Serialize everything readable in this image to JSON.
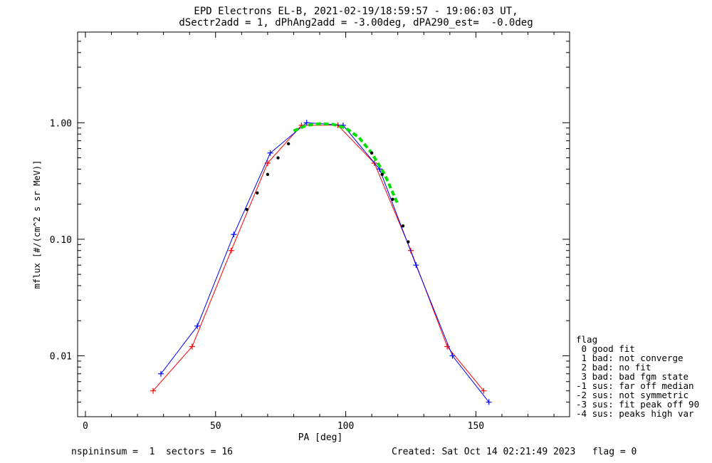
{
  "title_line1": "EPD Electrons EL-B, 2021-02-19/18:59:57 - 19:06:03 UT,",
  "title_line2": "dSectr2add = 1, dPhAng2add = -3.00deg, dPA290_est=  -0.0deg",
  "footer_left": "nspininsum =  1  sectors = 16",
  "footer_right": "Created: Sat Oct 14 02:21:49 2023   flag = 0",
  "legend": {
    "title": "flag",
    "items": [
      " 0 good fit",
      " 1 bad: not converge",
      " 2 bad: no fit",
      " 3 bad: bad fgm state",
      "-1 sus: far off median",
      "-2 sus: not symmetric",
      "-3 sus: fit peak off 90",
      "-4 sus: peaks high var"
    ]
  },
  "colors": {
    "red": "#ff0000",
    "blue": "#0000ff",
    "green": "#00dd00",
    "black": "#000000"
  },
  "chart_data": {
    "type": "line",
    "xlabel": "PA [deg]",
    "ylabel": "mflux [#/(cm^2 s sr MeV)]",
    "xlim": [
      -3,
      186
    ],
    "ylim": [
      0.003,
      6.0
    ],
    "yscale": "log",
    "xticks": [
      0,
      50,
      100,
      150
    ],
    "xtick_labels": [
      "0",
      "50",
      "100",
      "150"
    ],
    "yticks": [
      0.01,
      0.1,
      1.0
    ],
    "ytick_labels": [
      "0.01",
      "0.10",
      "1.00"
    ],
    "series": [
      {
        "color": "red",
        "style": "line+plus",
        "x": [
          26,
          41,
          56,
          70,
          83,
          97,
          111,
          125,
          139,
          153
        ],
        "y": [
          0.005,
          0.012,
          0.08,
          0.45,
          0.95,
          0.95,
          0.45,
          0.08,
          0.012,
          0.005
        ]
      },
      {
        "color": "blue",
        "style": "line+plus",
        "x": [
          29,
          43,
          57,
          71,
          85,
          99,
          113,
          127,
          141,
          155
        ],
        "y": [
          0.007,
          0.018,
          0.11,
          0.55,
          1.0,
          0.95,
          0.4,
          0.06,
          0.01,
          0.004
        ]
      },
      {
        "color": "green",
        "style": "dashed",
        "x": [
          80,
          85,
          90,
          95,
          100,
          105,
          110,
          115,
          120
        ],
        "y": [
          0.85,
          0.95,
          0.98,
          0.97,
          0.9,
          0.75,
          0.55,
          0.36,
          0.2
        ]
      },
      {
        "color": "black",
        "style": "dotted",
        "x": [
          62,
          66,
          70,
          74,
          78,
          110,
          114,
          118,
          122,
          124
        ],
        "y": [
          0.18,
          0.25,
          0.36,
          0.5,
          0.66,
          0.55,
          0.36,
          0.22,
          0.13,
          0.095
        ]
      }
    ]
  }
}
